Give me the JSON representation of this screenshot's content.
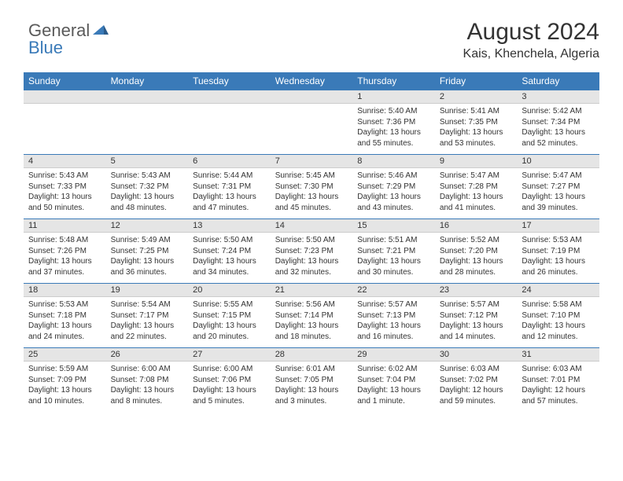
{
  "brand": {
    "first": "General",
    "second": "Blue"
  },
  "title": "August 2024",
  "location": "Kais, Khenchela, Algeria",
  "colors": {
    "header_bg": "#3a7ab8",
    "header_text": "#ffffff",
    "daynum_bg": "#e5e5e5",
    "body_bg": "#ffffff",
    "text": "#333333",
    "logo_grey": "#5a5a5a",
    "logo_blue": "#3a7ab8"
  },
  "typography": {
    "title_fontsize": 30,
    "location_fontsize": 16,
    "weekday_fontsize": 12,
    "daynum_fontsize": 11,
    "detail_fontsize": 10
  },
  "weekdays": [
    "Sunday",
    "Monday",
    "Tuesday",
    "Wednesday",
    "Thursday",
    "Friday",
    "Saturday"
  ],
  "weeks": [
    {
      "nums": [
        "",
        "",
        "",
        "",
        "1",
        "2",
        "3"
      ],
      "details": [
        "",
        "",
        "",
        "",
        "Sunrise: 5:40 AM\nSunset: 7:36 PM\nDaylight: 13 hours and 55 minutes.",
        "Sunrise: 5:41 AM\nSunset: 7:35 PM\nDaylight: 13 hours and 53 minutes.",
        "Sunrise: 5:42 AM\nSunset: 7:34 PM\nDaylight: 13 hours and 52 minutes."
      ]
    },
    {
      "nums": [
        "4",
        "5",
        "6",
        "7",
        "8",
        "9",
        "10"
      ],
      "details": [
        "Sunrise: 5:43 AM\nSunset: 7:33 PM\nDaylight: 13 hours and 50 minutes.",
        "Sunrise: 5:43 AM\nSunset: 7:32 PM\nDaylight: 13 hours and 48 minutes.",
        "Sunrise: 5:44 AM\nSunset: 7:31 PM\nDaylight: 13 hours and 47 minutes.",
        "Sunrise: 5:45 AM\nSunset: 7:30 PM\nDaylight: 13 hours and 45 minutes.",
        "Sunrise: 5:46 AM\nSunset: 7:29 PM\nDaylight: 13 hours and 43 minutes.",
        "Sunrise: 5:47 AM\nSunset: 7:28 PM\nDaylight: 13 hours and 41 minutes.",
        "Sunrise: 5:47 AM\nSunset: 7:27 PM\nDaylight: 13 hours and 39 minutes."
      ]
    },
    {
      "nums": [
        "11",
        "12",
        "13",
        "14",
        "15",
        "16",
        "17"
      ],
      "details": [
        "Sunrise: 5:48 AM\nSunset: 7:26 PM\nDaylight: 13 hours and 37 minutes.",
        "Sunrise: 5:49 AM\nSunset: 7:25 PM\nDaylight: 13 hours and 36 minutes.",
        "Sunrise: 5:50 AM\nSunset: 7:24 PM\nDaylight: 13 hours and 34 minutes.",
        "Sunrise: 5:50 AM\nSunset: 7:23 PM\nDaylight: 13 hours and 32 minutes.",
        "Sunrise: 5:51 AM\nSunset: 7:21 PM\nDaylight: 13 hours and 30 minutes.",
        "Sunrise: 5:52 AM\nSunset: 7:20 PM\nDaylight: 13 hours and 28 minutes.",
        "Sunrise: 5:53 AM\nSunset: 7:19 PM\nDaylight: 13 hours and 26 minutes."
      ]
    },
    {
      "nums": [
        "18",
        "19",
        "20",
        "21",
        "22",
        "23",
        "24"
      ],
      "details": [
        "Sunrise: 5:53 AM\nSunset: 7:18 PM\nDaylight: 13 hours and 24 minutes.",
        "Sunrise: 5:54 AM\nSunset: 7:17 PM\nDaylight: 13 hours and 22 minutes.",
        "Sunrise: 5:55 AM\nSunset: 7:15 PM\nDaylight: 13 hours and 20 minutes.",
        "Sunrise: 5:56 AM\nSunset: 7:14 PM\nDaylight: 13 hours and 18 minutes.",
        "Sunrise: 5:57 AM\nSunset: 7:13 PM\nDaylight: 13 hours and 16 minutes.",
        "Sunrise: 5:57 AM\nSunset: 7:12 PM\nDaylight: 13 hours and 14 minutes.",
        "Sunrise: 5:58 AM\nSunset: 7:10 PM\nDaylight: 13 hours and 12 minutes."
      ]
    },
    {
      "nums": [
        "25",
        "26",
        "27",
        "28",
        "29",
        "30",
        "31"
      ],
      "details": [
        "Sunrise: 5:59 AM\nSunset: 7:09 PM\nDaylight: 13 hours and 10 minutes.",
        "Sunrise: 6:00 AM\nSunset: 7:08 PM\nDaylight: 13 hours and 8 minutes.",
        "Sunrise: 6:00 AM\nSunset: 7:06 PM\nDaylight: 13 hours and 5 minutes.",
        "Sunrise: 6:01 AM\nSunset: 7:05 PM\nDaylight: 13 hours and 3 minutes.",
        "Sunrise: 6:02 AM\nSunset: 7:04 PM\nDaylight: 13 hours and 1 minute.",
        "Sunrise: 6:03 AM\nSunset: 7:02 PM\nDaylight: 12 hours and 59 minutes.",
        "Sunrise: 6:03 AM\nSunset: 7:01 PM\nDaylight: 12 hours and 57 minutes."
      ]
    }
  ]
}
